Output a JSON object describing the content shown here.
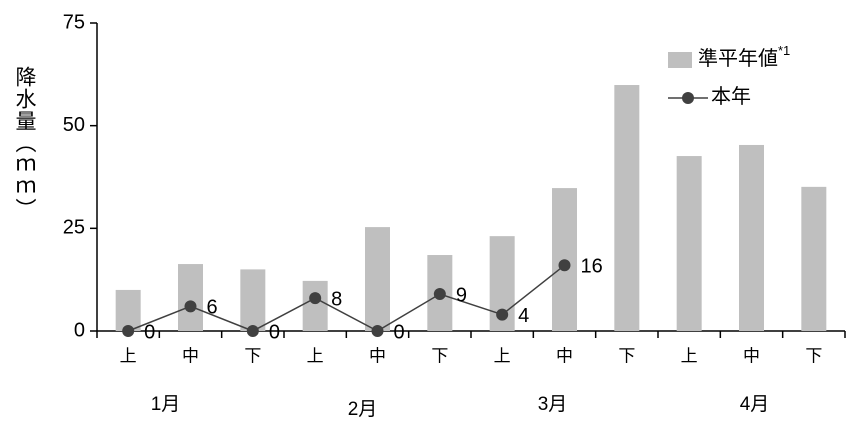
{
  "chart_data": {
    "type": "bar-line",
    "ylabel": "降水量（ｍｍ）",
    "categories": [
      "上",
      "中",
      "下",
      "上",
      "中",
      "下",
      "上",
      "中",
      "下",
      "上",
      "中",
      "下"
    ],
    "groups": [
      "1月",
      "2月",
      "3月",
      "4月"
    ],
    "series": [
      {
        "name": "準平年値",
        "type": "bar",
        "color": "#bfbfbf",
        "values": [
          10,
          16.3,
          15,
          12.2,
          25.3,
          18.5,
          23.1,
          34.8,
          59.9,
          42.6,
          45.3,
          35.1
        ]
      },
      {
        "name": "本年",
        "type": "line",
        "color": "#404040",
        "values": [
          0,
          6,
          0,
          8,
          0,
          9,
          4,
          16,
          null,
          null,
          null,
          null
        ]
      }
    ],
    "legend_note": "*1",
    "ylim": [
      0,
      75
    ],
    "yticks": [
      0,
      25,
      50,
      75
    ],
    "grid": false,
    "legend": "upper right"
  }
}
